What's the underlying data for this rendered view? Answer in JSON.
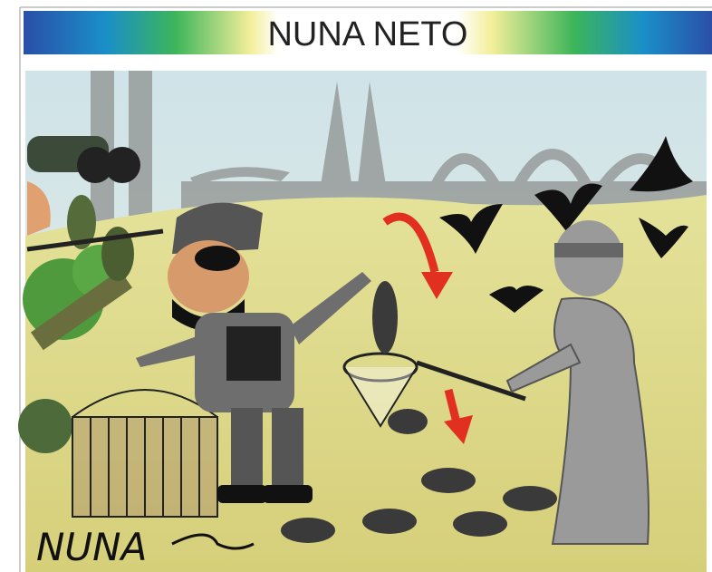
{
  "header": {
    "title": "NUNA NETO"
  },
  "illustration": {
    "signature": "NUNA"
  }
}
